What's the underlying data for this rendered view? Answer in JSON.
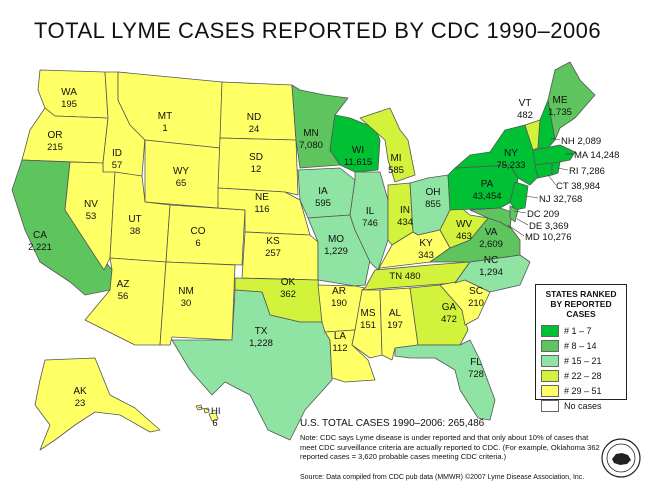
{
  "title": "TOTAL LYME CASES REPORTED BY CDC 1990–2006",
  "colors": {
    "rank_1_7": "#00c033",
    "rank_8_14": "#5ec45e",
    "rank_15_21": "#8fe3a3",
    "rank_22_28": "#d2f23c",
    "rank_29_51": "#ffff66",
    "no_cases": "#ffffff"
  },
  "states": {
    "WA": {
      "name": "WA",
      "value": "195"
    },
    "OR": {
      "name": "OR",
      "value": "215"
    },
    "CA": {
      "name": "CA",
      "value": "2,221"
    },
    "ID": {
      "name": "ID",
      "value": "57"
    },
    "NV": {
      "name": "NV",
      "value": "53"
    },
    "MT": {
      "name": "MT",
      "value": "1"
    },
    "WY": {
      "name": "WY",
      "value": "65"
    },
    "UT": {
      "name": "UT",
      "value": "38"
    },
    "AZ": {
      "name": "AZ",
      "value": "56"
    },
    "CO": {
      "name": "CO",
      "value": "6"
    },
    "NM": {
      "name": "NM",
      "value": "30"
    },
    "ND": {
      "name": "ND",
      "value": "24"
    },
    "SD": {
      "name": "SD",
      "value": "12"
    },
    "NE": {
      "name": "NE",
      "value": "116"
    },
    "KS": {
      "name": "KS",
      "value": "257"
    },
    "OK": {
      "name": "OK",
      "value": "362"
    },
    "TX": {
      "name": "TX",
      "value": "1,228"
    },
    "MN": {
      "name": "MN",
      "value": "7,080"
    },
    "IA": {
      "name": "IA",
      "value": "595"
    },
    "MO": {
      "name": "MO",
      "value": "1,229"
    },
    "AR": {
      "name": "AR",
      "value": "190"
    },
    "LA": {
      "name": "LA",
      "value": "112"
    },
    "WI": {
      "name": "WI",
      "value": "11,615"
    },
    "IL": {
      "name": "IL",
      "value": "746"
    },
    "MI": {
      "name": "MI",
      "value": "585"
    },
    "IN": {
      "name": "IN",
      "value": "434"
    },
    "OH": {
      "name": "OH",
      "value": "855"
    },
    "KY": {
      "name": "KY",
      "value": "343"
    },
    "TN": {
      "name": "TN",
      "value": "480"
    },
    "MS": {
      "name": "MS",
      "value": "151"
    },
    "AL": {
      "name": "AL",
      "value": "197"
    },
    "GA": {
      "name": "GA",
      "value": "472"
    },
    "FL": {
      "name": "FL",
      "value": "728"
    },
    "SC": {
      "name": "SC",
      "value": "210"
    },
    "NC": {
      "name": "NC",
      "value": "1,294"
    },
    "VA": {
      "name": "VA",
      "value": "2,609"
    },
    "WV": {
      "name": "WV",
      "value": "463"
    },
    "PA": {
      "name": "PA",
      "value": "43,454"
    },
    "NY": {
      "name": "NY",
      "value": "75,233"
    },
    "VT": {
      "name": "VT",
      "value": "482"
    },
    "ME": {
      "name": "ME",
      "value": "1,735"
    },
    "NH": {
      "name": "NH",
      "value": "2,089"
    },
    "MA": {
      "name": "MA",
      "value": "14,248"
    },
    "RI": {
      "name": "RI",
      "value": "7,286"
    },
    "CT": {
      "name": "CT",
      "value": "38,984"
    },
    "NJ": {
      "name": "NJ",
      "value": "32,768"
    },
    "DC": {
      "name": "DC",
      "value": "209"
    },
    "DE": {
      "name": "DE",
      "value": "3,369"
    },
    "MD": {
      "name": "MD",
      "value": "10,276"
    },
    "AK": {
      "name": "AK",
      "value": "23"
    },
    "HI": {
      "name": "HI",
      "value": "6"
    }
  },
  "legend": {
    "title": "STATES RANKED BY REPORTED CASES",
    "items": [
      {
        "label": "# 1 – 7"
      },
      {
        "label": "# 8 – 14"
      },
      {
        "label": "# 15 – 21"
      },
      {
        "label": "# 22 – 28"
      },
      {
        "label": "# 29 – 51"
      },
      {
        "label": "No cases"
      }
    ]
  },
  "total": "U.S. TOTAL CASES 1990–2006:  265,486",
  "note": "Note: CDC says Lyme disease is under reported and that only about 10% of cases that meet CDC surveillance criteria are actually reported to CDC. (For example, Oklahoma 362 reported cases = 3,620 probable cases meeting CDC criteria.)",
  "source": "Source: Data compiled from CDC pub data (MMWR)  ©2007 Lyme Disease Association, Inc."
}
